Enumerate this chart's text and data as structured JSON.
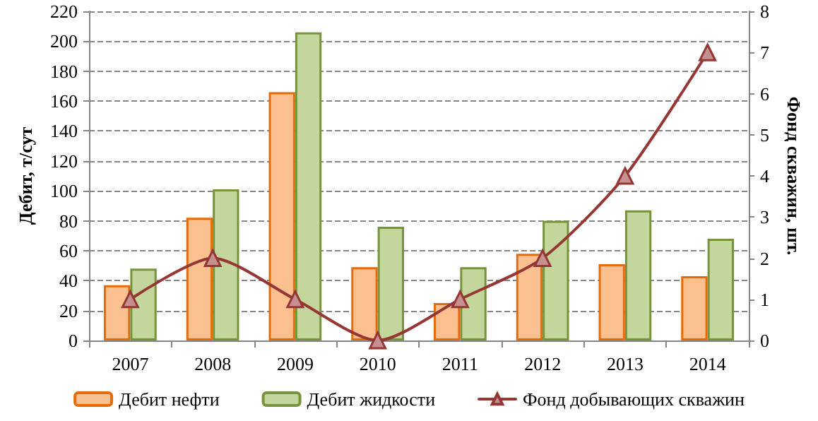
{
  "chart_data": {
    "type": "bar",
    "ylabel": "Дебит, т/сут",
    "y2label": "Фонд скважин, шт.",
    "categories": [
      "2007",
      "2008",
      "2009",
      "2010",
      "2011",
      "2012",
      "2013",
      "2014"
    ],
    "series": [
      {
        "name": "Дебит нефти",
        "color": "#fac090",
        "values": [
          37,
          82,
          166,
          49,
          25,
          58,
          51,
          43
        ]
      },
      {
        "name": "Дебит жидкости",
        "color": "#c3d69b",
        "values": [
          48,
          101,
          206,
          76,
          49,
          80,
          87,
          68
        ]
      },
      {
        "name": "Фонд добывающих скважин",
        "type": "line",
        "axis": "y2",
        "color": "#953735",
        "marker": "triangle",
        "values": [
          1,
          2,
          1,
          0,
          1,
          2,
          4,
          7
        ]
      }
    ],
    "ylim": [
      0,
      220
    ],
    "yticks": [
      0,
      20,
      40,
      60,
      80,
      100,
      120,
      140,
      160,
      180,
      200,
      220
    ],
    "y2lim": [
      0,
      8
    ],
    "y2ticks": [
      0,
      1,
      2,
      3,
      4,
      5,
      6,
      7,
      8
    ],
    "grid": "y",
    "legend": "bottom"
  }
}
